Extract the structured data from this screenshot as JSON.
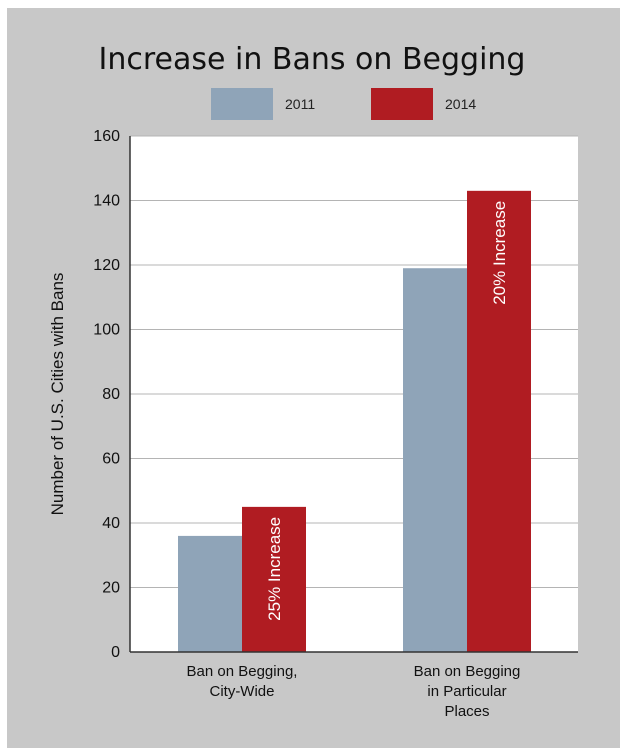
{
  "chart_data": {
    "type": "bar",
    "title": "Increase in Bans on Begging",
    "ylabel": "Number of U.S. Cities with Bans",
    "xlabel": "",
    "ylim": [
      0,
      160
    ],
    "yticks": [
      0,
      20,
      40,
      60,
      80,
      100,
      120,
      140,
      160
    ],
    "grid": true,
    "legend_placement": "top",
    "categories": [
      [
        "Ban on Begging,",
        "City-Wide"
      ],
      [
        "Ban on Begging",
        "in Particular",
        "Places"
      ]
    ],
    "series": [
      {
        "name": "2011",
        "color": "#8fa4b8",
        "values": [
          36,
          119
        ]
      },
      {
        "name": "2014",
        "color": "#b01c22",
        "values": [
          45,
          143
        ]
      }
    ],
    "annotations": [
      {
        "category_index": 0,
        "series_index": 1,
        "text": "25% Increase"
      },
      {
        "category_index": 1,
        "series_index": 1,
        "text": "20% Increase"
      }
    ]
  }
}
